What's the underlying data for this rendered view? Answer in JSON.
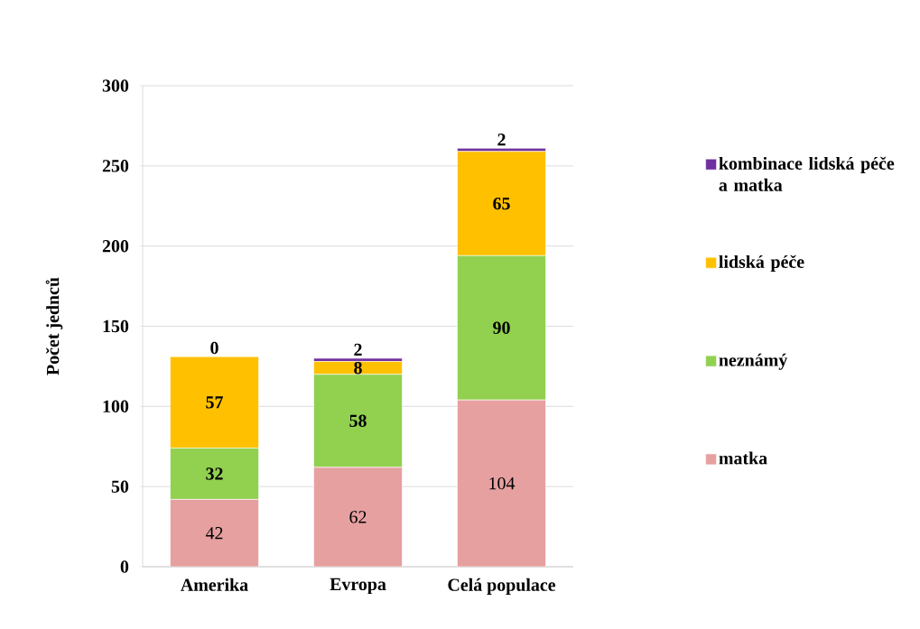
{
  "chart_data": {
    "type": "bar",
    "stacked": true,
    "ylabel": "Počet jednců",
    "categories": [
      "Amerika",
      "Evropa",
      "Celá populace"
    ],
    "series": [
      {
        "name": "matka",
        "color": "#e6a0a0",
        "values": [
          42,
          62,
          104
        ]
      },
      {
        "name": "neznámý",
        "color": "#92d050",
        "values": [
          32,
          58,
          90
        ]
      },
      {
        "name": "lidská péče",
        "color": "#ffc000",
        "values": [
          57,
          8,
          65
        ]
      },
      {
        "name": "kombinace lidská péče a matka",
        "color": "#7030a0",
        "values": [
          0,
          2,
          2
        ]
      }
    ],
    "ylim": [
      0,
      300
    ],
    "yticks": [
      0,
      50,
      100,
      150,
      200,
      250,
      300
    ],
    "grid": "y",
    "legend": "right",
    "data_labels": true
  }
}
